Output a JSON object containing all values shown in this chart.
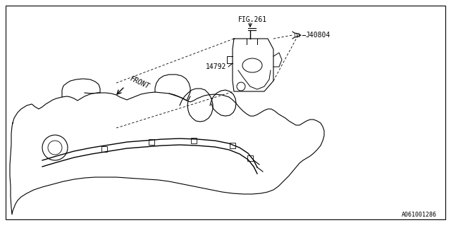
{
  "bg_color": "#ffffff",
  "line_color": "#000000",
  "fig_size": [
    6.4,
    3.2
  ],
  "dpi": 100,
  "label_fig261": "FIG.261",
  "label_j40804": "J40804",
  "label_14792": "14792",
  "label_front": "FRONT",
  "label_partno": "A061001286",
  "text_color": "#000000",
  "annotation_fontsize": 7,
  "partno_fontsize": 6
}
